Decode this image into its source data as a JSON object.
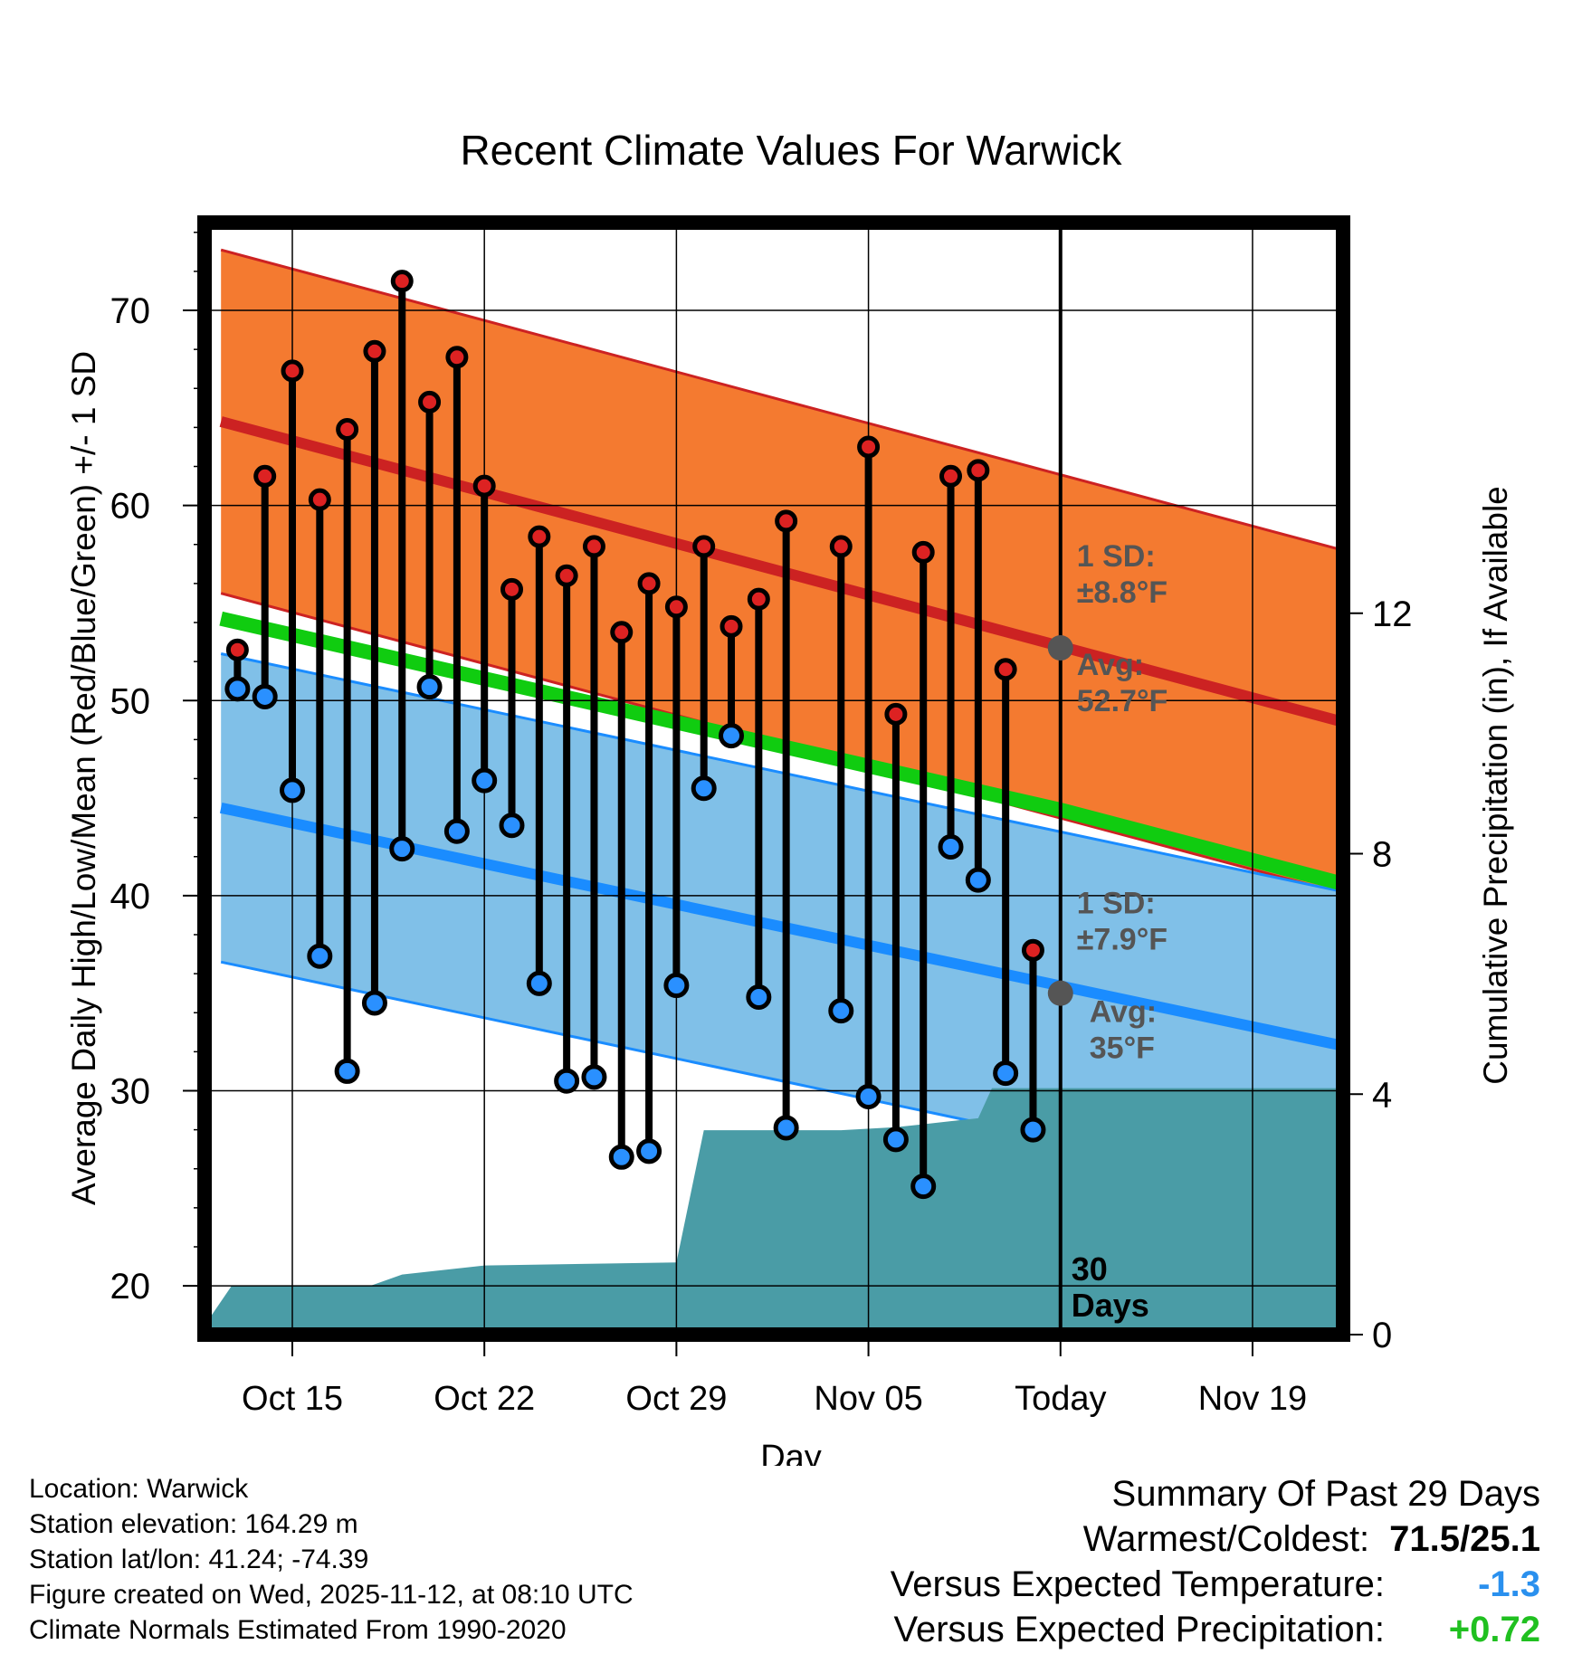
{
  "chart_data": {
    "type": "line",
    "title": "Recent Climate Values For Warwick",
    "xlabel": "Day",
    "ylabel": "Average Daily High/Low/Mean (Red/Blue/Green) +/- 1 SD",
    "y2label": "Cumulative Precipitation (in), If Available",
    "xlim": [
      -3.2,
      38.3
    ],
    "ylim": [
      17.5,
      74.5
    ],
    "y2lim": [
      0,
      18.5
    ],
    "x_ticks": [
      {
        "x": 0,
        "label": "Oct 15"
      },
      {
        "x": 7,
        "label": "Oct 22"
      },
      {
        "x": 14,
        "label": "Oct 29"
      },
      {
        "x": 21,
        "label": "Nov 05"
      },
      {
        "x": 28,
        "label": "Today"
      },
      {
        "x": 35,
        "label": "Nov 19"
      }
    ],
    "y_ticks": [
      20,
      30,
      40,
      50,
      60,
      70
    ],
    "y2_ticks": [
      0,
      4,
      8,
      12
    ],
    "today_x": 28,
    "today_label_1": "30",
    "today_label_2": "Days",
    "normal_high": {
      "x": [
        -2.6,
        38.3
      ],
      "mean": [
        64.3,
        48.9
      ],
      "sd": 8.8
    },
    "normal_low": {
      "x": [
        -2.6,
        38.3
      ],
      "mean": [
        44.5,
        32.3
      ],
      "sd": 7.9
    },
    "normal_mean": {
      "x": [
        -2.6,
        28,
        38.3
      ],
      "values": [
        54.2,
        44.4,
        40.6
      ]
    },
    "high_annotation": {
      "sd_label": "1 SD:",
      "sd_value": "±8.8°F",
      "avg_label": "Avg:",
      "avg_value": "52.7°F",
      "avg": 52.7
    },
    "low_annotation": {
      "sd_label": "1 SD:",
      "sd_value": "±7.9°F",
      "avg_label": "Avg:",
      "avg_value": "35°F",
      "avg": 35.0
    },
    "days": [
      -2,
      -1,
      0,
      1,
      2,
      3,
      4,
      5,
      6,
      7,
      8,
      9,
      10,
      11,
      12,
      13,
      14,
      15,
      16,
      17,
      18,
      20,
      21,
      22,
      23,
      24,
      25,
      26,
      27
    ],
    "highs": [
      52.6,
      61.5,
      66.9,
      60.3,
      63.9,
      67.9,
      71.5,
      65.3,
      67.6,
      61.0,
      55.7,
      58.4,
      56.4,
      57.9,
      53.5,
      56.0,
      54.8,
      57.9,
      53.8,
      55.2,
      59.2,
      57.9,
      63.0,
      49.3,
      57.6,
      61.5,
      61.8,
      51.6,
      37.2
    ],
    "lows": [
      50.6,
      50.2,
      45.4,
      36.9,
      31.0,
      34.5,
      42.4,
      50.7,
      43.3,
      45.9,
      43.6,
      35.5,
      30.5,
      30.7,
      26.6,
      26.9,
      35.4,
      45.5,
      48.2,
      34.8,
      28.1,
      34.1,
      29.7,
      27.5,
      25.1,
      42.5,
      40.8,
      30.9,
      28.0
    ],
    "precip": {
      "x": [
        -3.2,
        -2.2,
        1.1,
        2.9,
        4.0,
        7.0,
        14.0,
        15.0,
        20.0,
        22.0,
        24.0,
        25.0,
        25.5,
        38.3
      ],
      "values": [
        0.15,
        0.82,
        0.82,
        0.82,
        1.0,
        1.15,
        1.2,
        3.4,
        3.4,
        3.45,
        3.55,
        3.6,
        4.1,
        4.1
      ]
    },
    "colors": {
      "high_band": "#f47a30",
      "high_line": "#cc2222",
      "low_band": "#80c0e8",
      "low_line": "#1a8cff",
      "mean_line": "#10cc10",
      "precip": "#4a9ca6",
      "high_dot": "#dd2222",
      "low_dot": "#2a90ff",
      "annotation": "#555555"
    }
  },
  "footer": {
    "location": "Location: Warwick",
    "elevation": "Station elevation: 164.29 m",
    "latlon": "Station lat/lon: 41.24; -74.39",
    "created": "Figure created on Wed, 2025-11-12, at 08:10 UTC",
    "normals": "Climate Normals Estimated From 1990-2020"
  },
  "summary": {
    "title": "Summary Of Past 29 Days",
    "warmest_coldest_label": "Warmest/Coldest:",
    "warmest_coldest_value": "71.5/25.1",
    "vs_temp_label": "Versus Expected Temperature:",
    "vs_temp_value": "-1.3",
    "vs_temp_color": "#2a90ee",
    "vs_precip_label": "Versus Expected Precipitation:",
    "vs_precip_value": "+0.72",
    "vs_precip_color": "#20c020"
  }
}
